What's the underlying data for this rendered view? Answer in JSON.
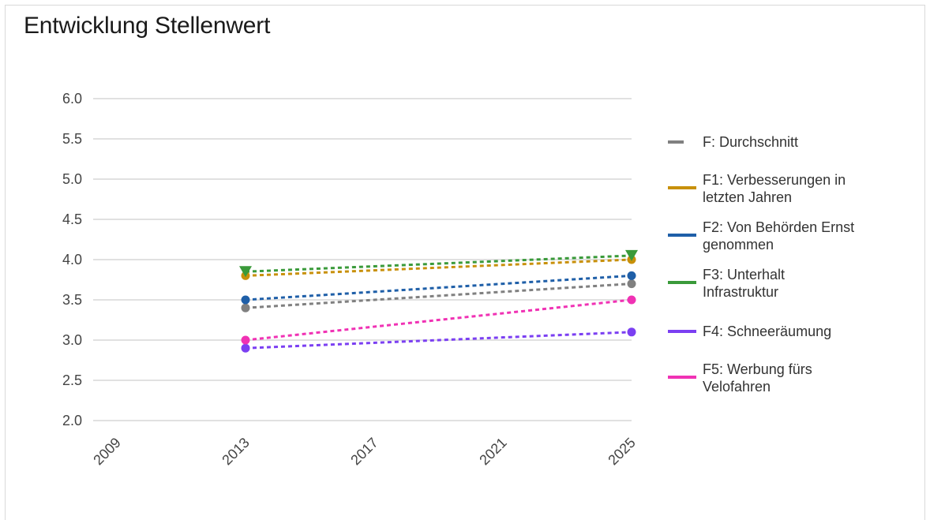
{
  "chart_data": {
    "type": "line",
    "title": "Entwicklung Stellenwert",
    "xlabel": "",
    "ylabel": "",
    "x_ticks": [
      "2009",
      "2013",
      "2017",
      "2021",
      "2025"
    ],
    "xlim": [
      2009,
      2025
    ],
    "ylim": [
      2.0,
      6.0
    ],
    "y_ticks": [
      "6.0",
      "5.5",
      "5.0",
      "4.5",
      "4.0",
      "3.5",
      "3.0",
      "2.5",
      "2.0"
    ],
    "grid": "horizontal",
    "legend_position": "right",
    "series": [
      {
        "name": "F: Durchschnitt",
        "lines": [
          "F: Durchschnitt"
        ],
        "color": "#808080",
        "marker": "circle",
        "x": [
          2013,
          2025
        ],
        "y": [
          3.4,
          3.7
        ]
      },
      {
        "name": "F1: Verbesserungen in letzten Jahren",
        "lines": [
          "F1: Verbesserungen in",
          "letzten Jahren"
        ],
        "color": "#c8900a",
        "marker": "circle",
        "x": [
          2013,
          2025
        ],
        "y": [
          3.8,
          4.0
        ]
      },
      {
        "name": "F2: Von Behörden Ernst genommen",
        "lines": [
          "F2: Von Behörden Ernst",
          "genommen"
        ],
        "color": "#1f5fa8",
        "marker": "circle",
        "x": [
          2013,
          2025
        ],
        "y": [
          3.5,
          3.8
        ]
      },
      {
        "name": "F3: Unterhalt Infrastruktur",
        "lines": [
          "F3: Unterhalt",
          "Infrastruktur"
        ],
        "color": "#3a9a3a",
        "marker": "triangle-down",
        "x": [
          2013,
          2025
        ],
        "y": [
          3.85,
          4.05
        ]
      },
      {
        "name": "F4: Schneeräumung",
        "lines": [
          "F4: Schneeräumung"
        ],
        "color": "#7b3ff2",
        "marker": "circle",
        "x": [
          2013,
          2025
        ],
        "y": [
          2.9,
          3.1
        ]
      },
      {
        "name": "F5: Werbung fürs Velofahren",
        "lines": [
          "F5: Werbung fürs",
          "Velofahren"
        ],
        "color": "#f032b4",
        "marker": "circle",
        "x": [
          2013,
          2025
        ],
        "y": [
          3.0,
          3.5
        ]
      }
    ]
  }
}
